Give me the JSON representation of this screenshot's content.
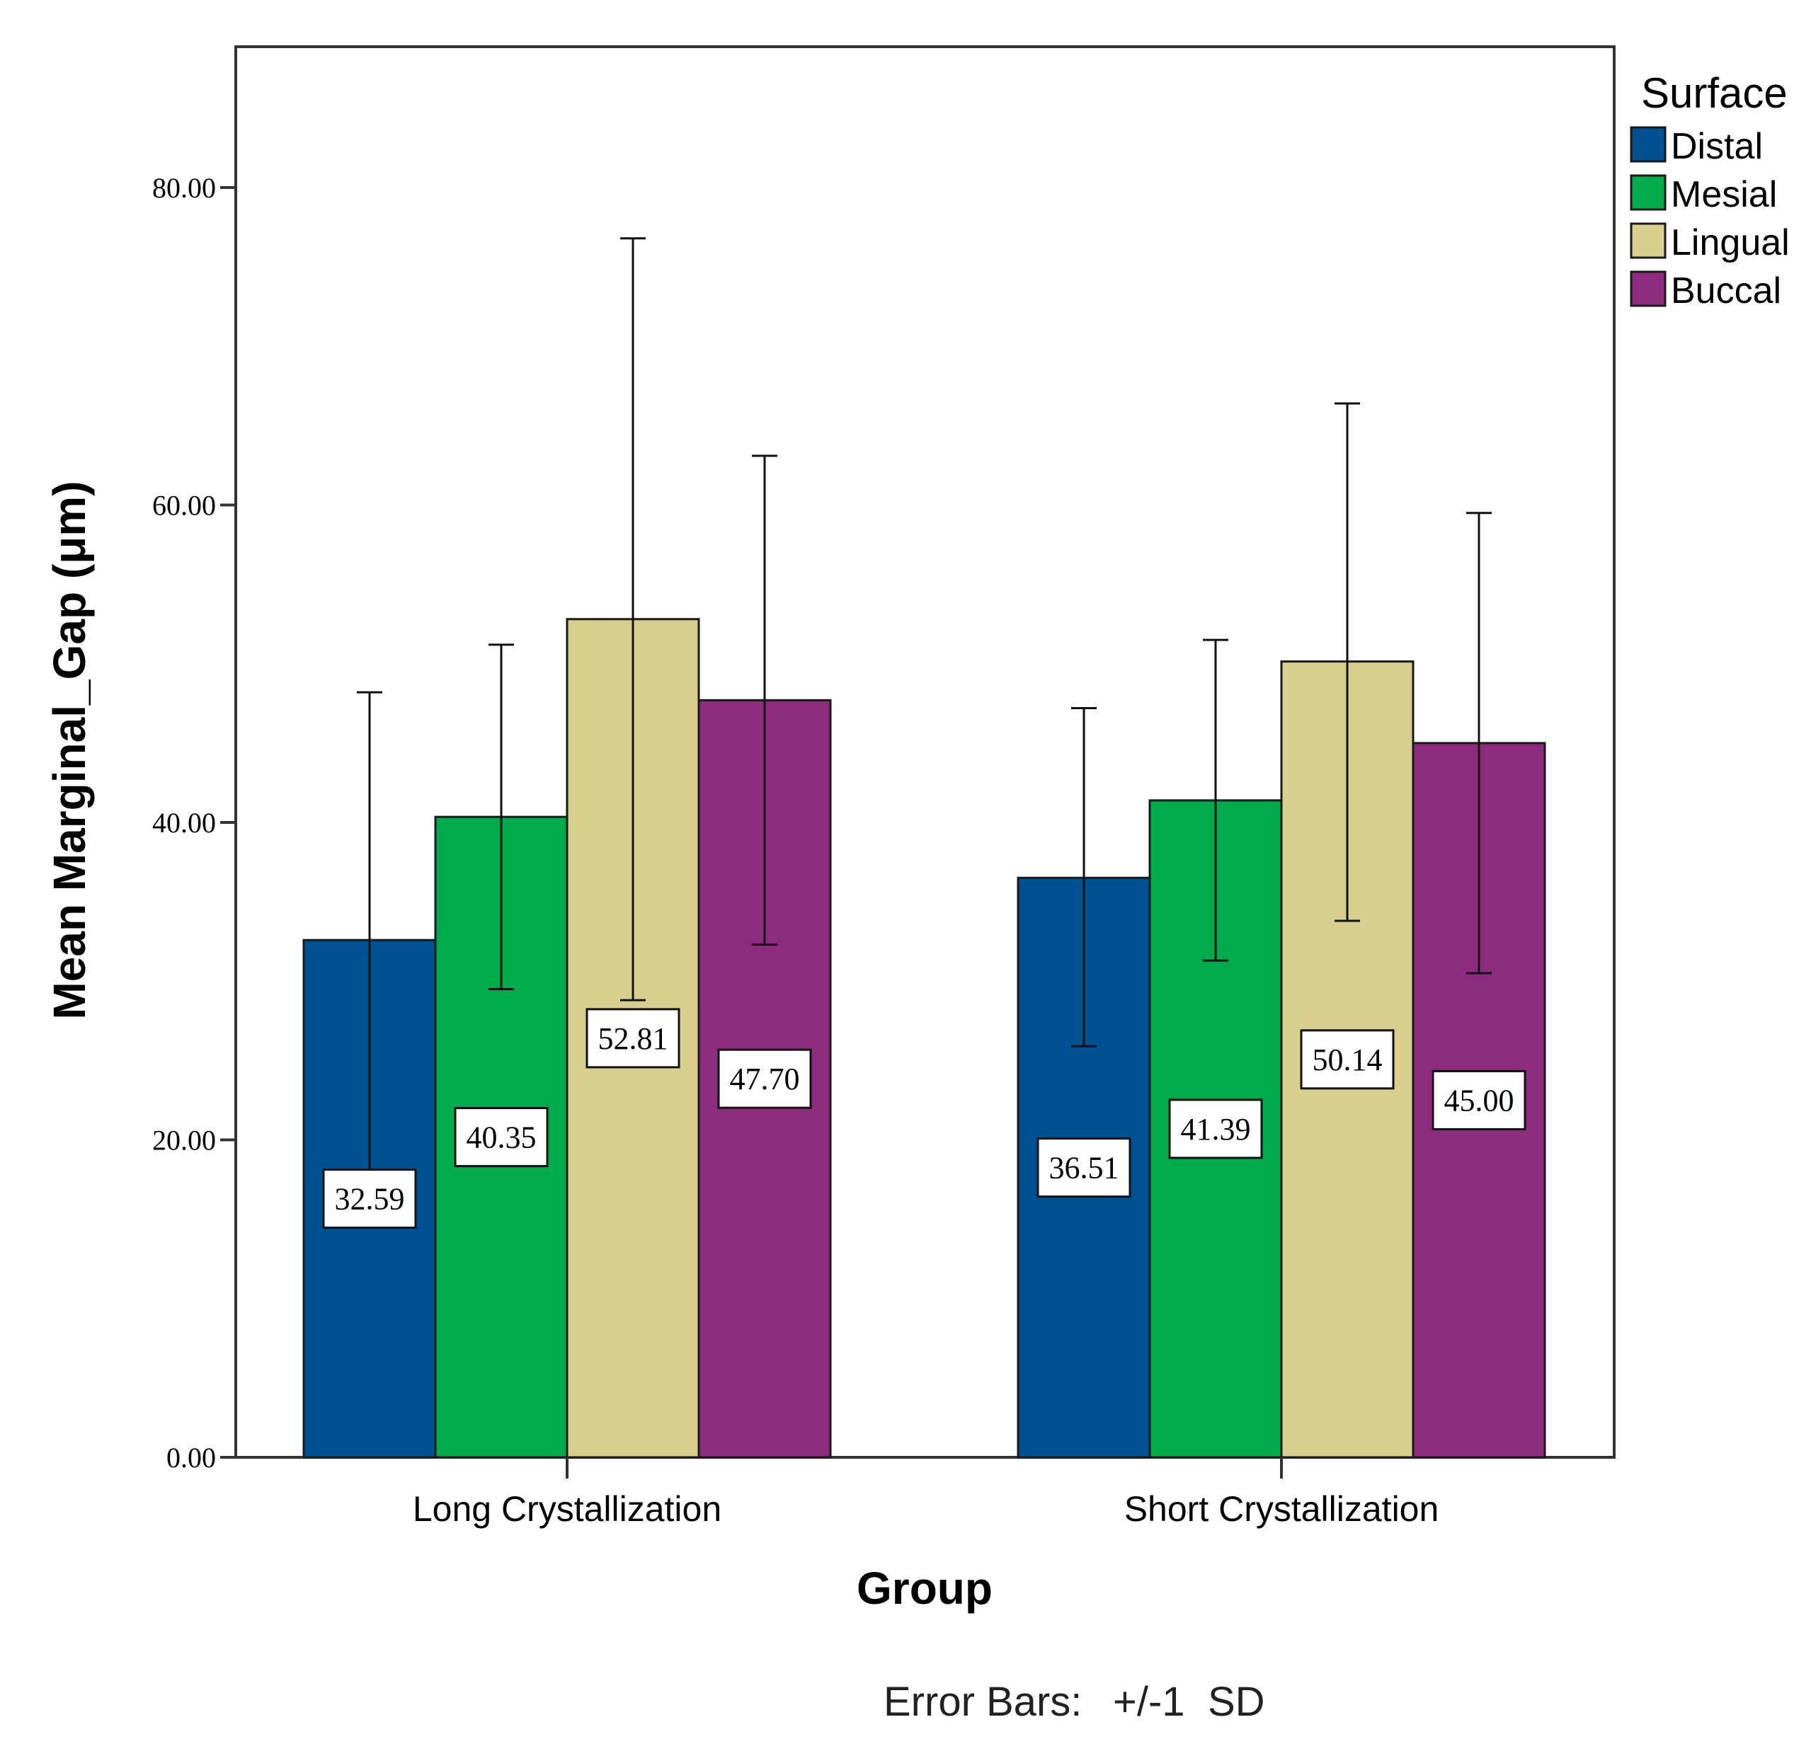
{
  "chart_data": {
    "type": "bar",
    "title": "",
    "xlabel": "Group",
    "ylabel": "Mean Marginal_Gap (μm)",
    "ylim": [
      0,
      88
    ],
    "yticks": [
      0,
      20,
      40,
      60,
      80
    ],
    "ytick_labels": [
      "0.00",
      "20.00",
      "40.00",
      "60.00",
      "80.00"
    ],
    "grid": false,
    "categories": [
      "Long Crystallization",
      "Short Crystallization"
    ],
    "legend": {
      "title": "Surface",
      "placement": "right"
    },
    "series": [
      {
        "name": "Distal",
        "color": "#005192",
        "values": [
          32.59,
          36.51
        ],
        "labels": [
          "32.59",
          "36.51"
        ],
        "err_high": [
          48.2,
          47.2
        ],
        "err_low": [
          17.0,
          25.9
        ]
      },
      {
        "name": "Mesial",
        "color": "#00AB4B",
        "values": [
          40.35,
          41.39
        ],
        "labels": [
          "40.35",
          "41.39"
        ],
        "err_high": [
          51.2,
          51.5
        ],
        "err_low": [
          29.5,
          31.3
        ]
      },
      {
        "name": "Lingual",
        "color": "#D8CF8E",
        "values": [
          52.81,
          50.14
        ],
        "labels": [
          "52.81",
          "50.14"
        ],
        "err_high": [
          76.8,
          66.4
        ],
        "err_low": [
          28.8,
          33.8
        ]
      },
      {
        "name": "Buccal",
        "color": "#8D2B7E",
        "values": [
          47.7,
          45.0
        ],
        "labels": [
          "47.70",
          "45.00"
        ],
        "err_high": [
          63.1,
          59.5
        ],
        "err_low": [
          32.3,
          30.5
        ]
      }
    ],
    "footnote": {
      "prefix": "Error Bars:",
      "value": "+/-1",
      "suffix": "SD"
    }
  }
}
